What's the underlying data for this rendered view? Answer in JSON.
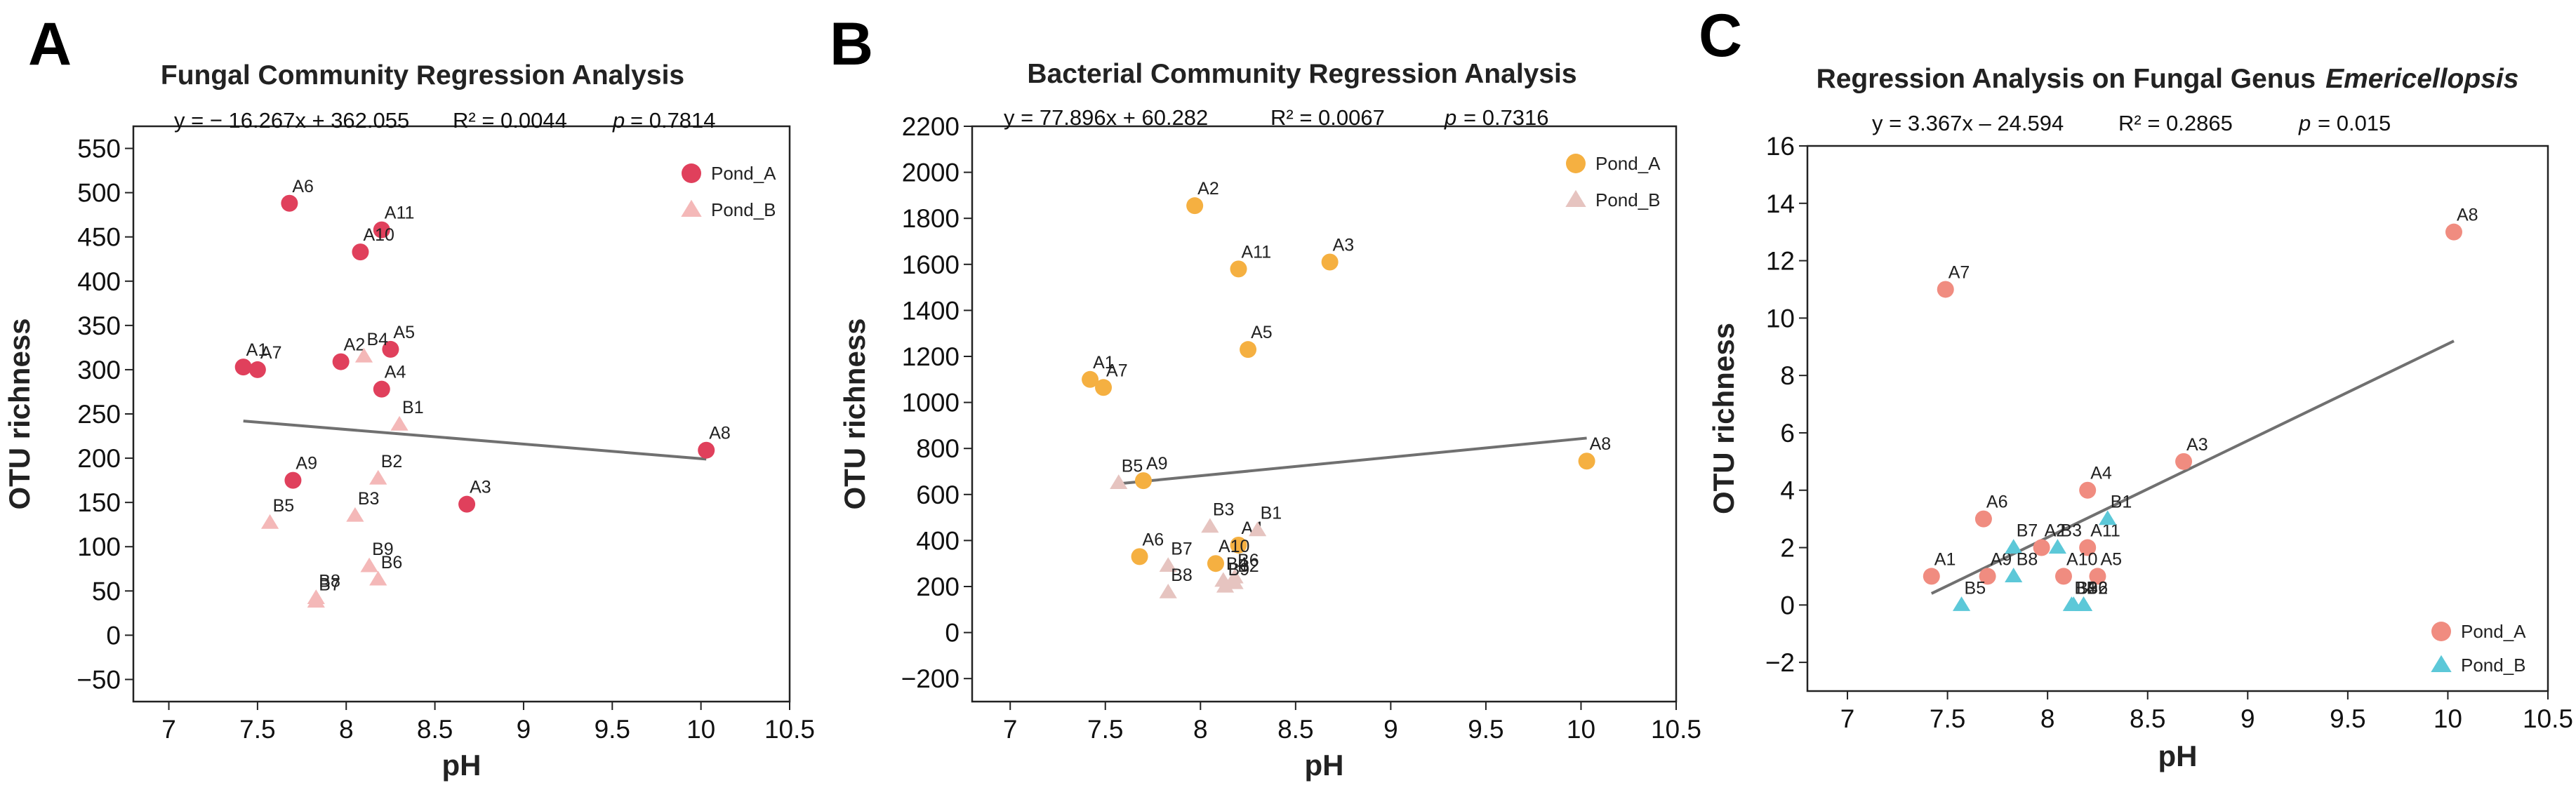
{
  "chart_data": [
    {
      "panel": "A",
      "type": "scatter",
      "title": "Fungal Community Regression Analysis",
      "equation": "y = − 16.267x + 362.055",
      "r2": "R² = 0.0044",
      "p_label": "p",
      "p_value": "= 0.7814",
      "xlabel": "pH",
      "ylabel": "OTU richness",
      "xlim": [
        6.8,
        10.5
      ],
      "ylim": [
        -75,
        575
      ],
      "xticks": [
        7,
        7.5,
        8,
        8.5,
        9,
        9.5,
        10,
        10.5
      ],
      "xtick_labels": [
        "7",
        "7.5",
        "8",
        "8.5",
        "9",
        "9.5",
        "10",
        "10.5"
      ],
      "yticks": [
        -50,
        0,
        50,
        100,
        150,
        200,
        250,
        300,
        350,
        400,
        450,
        500,
        550
      ],
      "ytick_labels": [
        "−50",
        "0",
        "50",
        "100",
        "150",
        "200",
        "250",
        "300",
        "350",
        "400",
        "450",
        "500",
        "550"
      ],
      "regression_line": {
        "x": [
          7.42,
          10.03
        ],
        "y": [
          242,
          199
        ]
      },
      "legend_position": "top-right",
      "colors": {
        "Pond_A": "#e0405c",
        "Pond_B": "#f4b8b8",
        "line": "#707070"
      },
      "series": [
        {
          "name": "Pond_A",
          "marker": "circle",
          "points": [
            {
              "label": "A6",
              "x": 7.68,
              "y": 488
            },
            {
              "label": "A11",
              "x": 8.2,
              "y": 458
            },
            {
              "label": "A10",
              "x": 8.08,
              "y": 433
            },
            {
              "label": "A1",
              "x": 7.42,
              "y": 303
            },
            {
              "label": "A7",
              "x": 7.5,
              "y": 300
            },
            {
              "label": "A2",
              "x": 7.97,
              "y": 309
            },
            {
              "label": "A5",
              "x": 8.25,
              "y": 323
            },
            {
              "label": "A4",
              "x": 8.2,
              "y": 278
            },
            {
              "label": "A9",
              "x": 7.7,
              "y": 175
            },
            {
              "label": "A3",
              "x": 8.68,
              "y": 148
            },
            {
              "label": "A8",
              "x": 10.03,
              "y": 209
            }
          ]
        },
        {
          "name": "Pond_B",
          "marker": "triangle",
          "points": [
            {
              "label": "B4",
              "x": 8.1,
              "y": 315
            },
            {
              "label": "B1",
              "x": 8.3,
              "y": 238
            },
            {
              "label": "B2",
              "x": 8.18,
              "y": 177
            },
            {
              "label": "B3",
              "x": 8.05,
              "y": 135
            },
            {
              "label": "B5",
              "x": 7.57,
              "y": 127
            },
            {
              "label": "B9",
              "x": 8.13,
              "y": 78
            },
            {
              "label": "B6",
              "x": 8.18,
              "y": 63
            },
            {
              "label": "B8",
              "x": 7.83,
              "y": 42
            },
            {
              "label": "B7",
              "x": 7.83,
              "y": 38
            }
          ]
        }
      ]
    },
    {
      "panel": "B",
      "type": "scatter",
      "title": "Bacterial Community Regression Analysis",
      "equation": "y = 77.896x + 60.282",
      "r2": "R² = 0.0067",
      "p_label": "p",
      "p_value": "= 0.7316",
      "xlabel": "pH",
      "ylabel": "OTU richness",
      "xlim": [
        6.8,
        10.5
      ],
      "ylim": [
        -300,
        2200
      ],
      "xticks": [
        7,
        7.5,
        8,
        8.5,
        9,
        9.5,
        10,
        10.5
      ],
      "xtick_labels": [
        "7",
        "7.5",
        "8",
        "8.5",
        "9",
        "9.5",
        "10",
        "10.5"
      ],
      "yticks": [
        -200,
        0,
        200,
        400,
        600,
        800,
        1000,
        1200,
        1400,
        1600,
        1800,
        2000,
        2200
      ],
      "ytick_labels": [
        "−200",
        "0",
        "200",
        "400",
        "600",
        "800",
        "1000",
        "1200",
        "1400",
        "1600",
        "1800",
        "2000",
        "2200"
      ],
      "regression_line": {
        "x": [
          7.55,
          10.03
        ],
        "y": [
          645,
          845
        ]
      },
      "legend_position": "top-right",
      "colors": {
        "Pond_A": "#f5b041",
        "Pond_B": "#e6c4c0",
        "line": "#707070"
      },
      "series": [
        {
          "name": "Pond_A",
          "marker": "circle",
          "points": [
            {
              "label": "A2",
              "x": 7.97,
              "y": 1855
            },
            {
              "label": "A3",
              "x": 8.68,
              "y": 1610
            },
            {
              "label": "A11",
              "x": 8.2,
              "y": 1580
            },
            {
              "label": "A5",
              "x": 8.25,
              "y": 1230
            },
            {
              "label": "A1",
              "x": 7.42,
              "y": 1100
            },
            {
              "label": "A7",
              "x": 7.49,
              "y": 1065
            },
            {
              "label": "A9",
              "x": 7.7,
              "y": 660
            },
            {
              "label": "A8",
              "x": 10.03,
              "y": 745
            },
            {
              "label": "A6",
              "x": 7.68,
              "y": 330
            },
            {
              "label": "A4",
              "x": 8.2,
              "y": 380
            },
            {
              "label": "A10",
              "x": 8.08,
              "y": 300
            }
          ]
        },
        {
          "name": "Pond_B",
          "marker": "triangle",
          "points": [
            {
              "label": "B5",
              "x": 7.57,
              "y": 650
            },
            {
              "label": "B3",
              "x": 8.05,
              "y": 460
            },
            {
              "label": "B1",
              "x": 8.3,
              "y": 445
            },
            {
              "label": "B7",
              "x": 7.83,
              "y": 290
            },
            {
              "label": "B6",
              "x": 8.18,
              "y": 240
            },
            {
              "label": "B4",
              "x": 8.12,
              "y": 225
            },
            {
              "label": "B2",
              "x": 8.18,
              "y": 215
            },
            {
              "label": "B9",
              "x": 8.13,
              "y": 200
            },
            {
              "label": "B8",
              "x": 7.83,
              "y": 175
            }
          ]
        }
      ]
    },
    {
      "panel": "C",
      "type": "scatter",
      "title": "Regression Analysis on Fungal Genus",
      "title_italic": "Emericellopsis",
      "equation": "y = 3.367x – 24.594",
      "r2": "R² = 0.2865",
      "p_label": "p",
      "p_value": "= 0.015",
      "xlabel": "pH",
      "ylabel": "OTU richness",
      "xlim": [
        6.8,
        10.5
      ],
      "ylim": [
        -3,
        16
      ],
      "xticks": [
        7,
        7.5,
        8,
        8.5,
        9,
        9.5,
        10,
        10.5
      ],
      "xtick_labels": [
        "7",
        "7.5",
        "8",
        "8.5",
        "9",
        "9.5",
        "10",
        "10.5"
      ],
      "yticks": [
        -2,
        0,
        2,
        4,
        6,
        8,
        10,
        12,
        14,
        16
      ],
      "ytick_labels": [
        "−2",
        "0",
        "2",
        "4",
        "6",
        "8",
        "10",
        "12",
        "14",
        "16"
      ],
      "regression_line": {
        "x": [
          7.42,
          10.03
        ],
        "y": [
          0.4,
          9.2
        ]
      },
      "legend_position": "bottom-right",
      "colors": {
        "Pond_A": "#f08c80",
        "Pond_B": "#5cc8d8",
        "line": "#707070"
      },
      "series": [
        {
          "name": "Pond_A",
          "marker": "circle",
          "points": [
            {
              "label": "A8",
              "x": 10.03,
              "y": 13
            },
            {
              "label": "A7",
              "x": 7.49,
              "y": 11
            },
            {
              "label": "A3",
              "x": 8.68,
              "y": 5
            },
            {
              "label": "A4",
              "x": 8.2,
              "y": 4
            },
            {
              "label": "A6",
              "x": 7.68,
              "y": 3
            },
            {
              "label": "A2",
              "x": 7.97,
              "y": 2
            },
            {
              "label": "A11",
              "x": 8.2,
              "y": 2
            },
            {
              "label": "A1",
              "x": 7.42,
              "y": 1
            },
            {
              "label": "A9",
              "x": 7.7,
              "y": 1
            },
            {
              "label": "A10",
              "x": 8.08,
              "y": 1
            },
            {
              "label": "A5",
              "x": 8.25,
              "y": 1
            }
          ]
        },
        {
          "name": "Pond_B",
          "marker": "triangle",
          "points": [
            {
              "label": "B1",
              "x": 8.3,
              "y": 3
            },
            {
              "label": "B7",
              "x": 7.83,
              "y": 2
            },
            {
              "label": "B3",
              "x": 8.05,
              "y": 2
            },
            {
              "label": "B8",
              "x": 7.83,
              "y": 1
            },
            {
              "label": "B5",
              "x": 7.57,
              "y": 0
            },
            {
              "label": "B4",
              "x": 8.12,
              "y": 0
            },
            {
              "label": "B2",
              "x": 8.18,
              "y": 0
            },
            {
              "label": "B9",
              "x": 8.13,
              "y": 0
            },
            {
              "label": "B6",
              "x": 8.18,
              "y": 0
            }
          ]
        }
      ]
    }
  ]
}
